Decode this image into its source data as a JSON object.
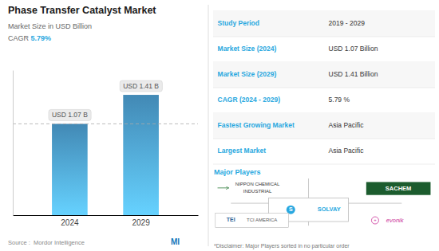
{
  "chart_data": {
    "type": "bar",
    "title": "Phase Transfer Catalyst Market",
    "subtitle": "Market Size in USD Billion",
    "cagr_label": "CAGR ",
    "cagr_value": "5.79%",
    "categories": [
      "2024",
      "2029"
    ],
    "values": [
      1.07,
      1.41
    ],
    "value_labels": [
      "USD 1.07 B",
      "USD 1.41 B"
    ],
    "data_labels": true,
    "color": "#4a98c9",
    "ylim": [
      0,
      1.7
    ],
    "yticks": [],
    "tick_labels": "x",
    "grid": false,
    "reference_line": 1.07,
    "source": "Source :  Mordor Intelligence",
    "logo": "MI",
    "table": [
      {
        "label": "Study Period",
        "value": "2019 - 2029"
      },
      {
        "label": "Market Size (2024)",
        "value": "USD 1.07 Billion"
      },
      {
        "label": "Market Size (2029)",
        "value": "USD 1.41 Billion"
      },
      {
        "label": "CAGR (2024 - 2029)",
        "value": "5.79 %"
      },
      {
        "label": "Fastest Growing Market",
        "value": "Asia Pacific"
      },
      {
        "label": "Largest Market",
        "value": "Asia Pacific"
      }
    ],
    "major_players_label": "Major Players",
    "players": [
      [
        "S",
        "SOLVAY"
      ],
      [
        "NIPPON CHEMICAL",
        "INDUSTRIAL"
      ],
      [
        "SACHEM"
      ],
      [
        "TEI",
        "TCI AMERICA"
      ],
      [
        "+",
        "evonik"
      ]
    ],
    "disclaimer": "*Disclaimer: Major Players sorted in no particular order"
  }
}
